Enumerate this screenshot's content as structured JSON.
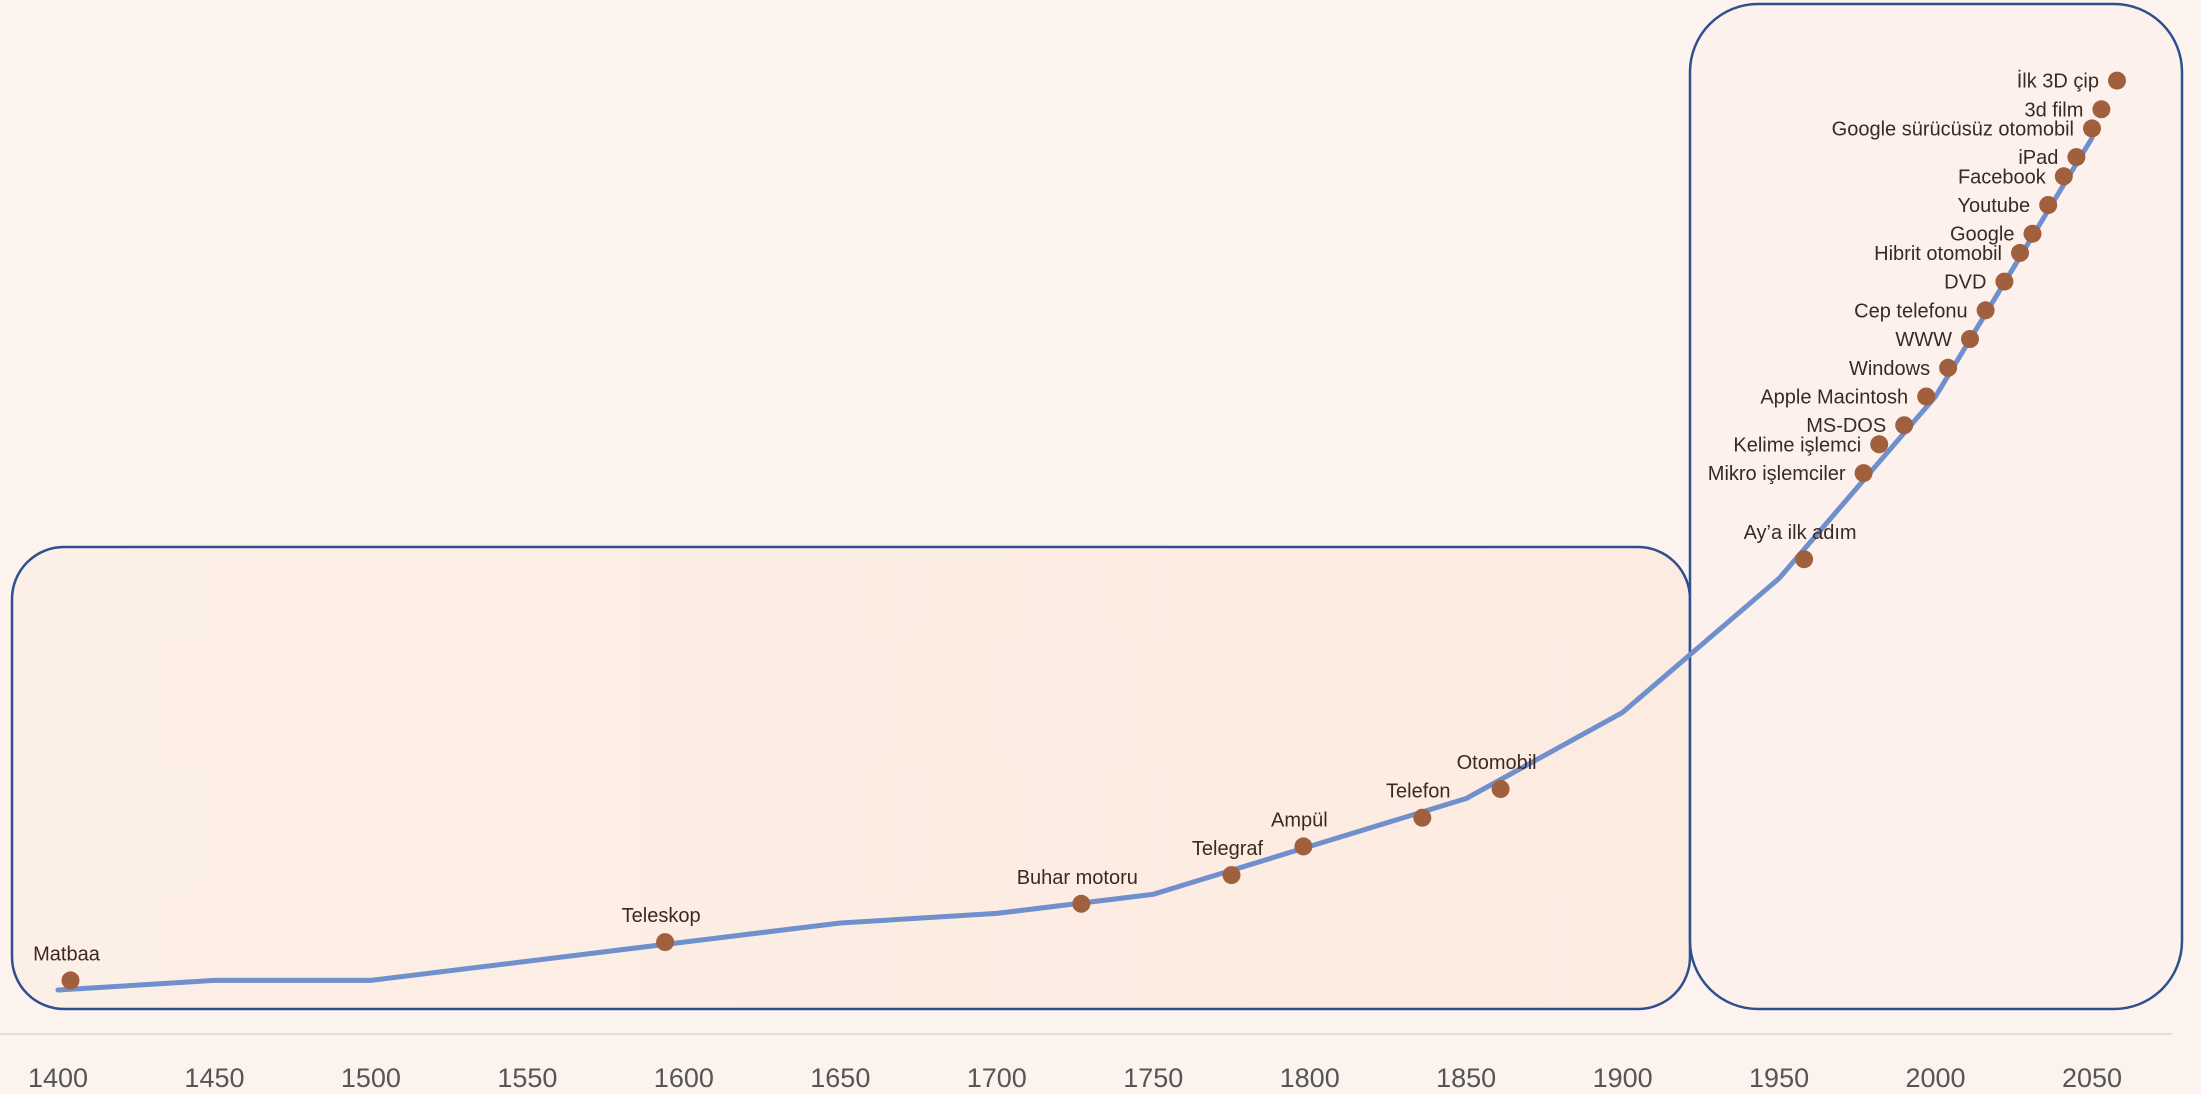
{
  "chart_data": {
    "type": "line",
    "title": "",
    "xlabel": "",
    "ylabel": "",
    "xlim": [
      1395,
      2075
    ],
    "x_ticks": [
      1400,
      1450,
      1500,
      1550,
      1600,
      1650,
      1700,
      1750,
      1800,
      1850,
      1900,
      1950,
      2000,
      2050
    ],
    "ylim": [
      0,
      100
    ],
    "grid": false,
    "legend": "none",
    "series": [
      {
        "x": [
          1400,
          1450,
          1500,
          1600,
          1650,
          1700,
          1750,
          1800,
          1850,
          1900,
          1950,
          2000,
          2050
        ],
        "y": [
          2,
          3,
          3,
          7,
          9,
          10,
          12,
          17,
          22,
          31,
          45,
          64,
          91
        ],
        "color": "#6f8fcd"
      }
    ],
    "events": [
      {
        "label": "Matbaa",
        "x": 1404,
        "y": 3
      },
      {
        "label": "Teleskop",
        "x": 1594,
        "y": 7
      },
      {
        "label": "Buhar motoru",
        "x": 1727,
        "y": 11
      },
      {
        "label": "Telegraf",
        "x": 1775,
        "y": 14
      },
      {
        "label": "Ampül",
        "x": 1798,
        "y": 17
      },
      {
        "label": "Telefon",
        "x": 1836,
        "y": 20
      },
      {
        "label": "Otomobil",
        "x": 1861,
        "y": 23
      },
      {
        "label": "Ay’a ilk adım",
        "x": 1958,
        "y": 47
      },
      {
        "label": "Mikro işlemciler",
        "x": 1977,
        "y": 56
      },
      {
        "label": "Kelime işlemci",
        "x": 1982,
        "y": 59
      },
      {
        "label": "MS-DOS",
        "x": 1990,
        "y": 61
      },
      {
        "label": "Apple Macintosh",
        "x": 1997,
        "y": 64
      },
      {
        "label": "Windows",
        "x": 2004,
        "y": 67
      },
      {
        "label": "WWW",
        "x": 2011,
        "y": 70
      },
      {
        "label": "Cep telefonu",
        "x": 2016,
        "y": 73
      },
      {
        "label": "DVD",
        "x": 2022,
        "y": 76
      },
      {
        "label": "Hibrit otomobil",
        "x": 2027,
        "y": 79
      },
      {
        "label": "Google",
        "x": 2031,
        "y": 81
      },
      {
        "label": "Youtube",
        "x": 2036,
        "y": 84
      },
      {
        "label": "Facebook",
        "x": 2041,
        "y": 87
      },
      {
        "label": "iPad",
        "x": 2045,
        "y": 89
      },
      {
        "label": "Google sürücüsüz otomobil",
        "x": 2050,
        "y": 92
      },
      {
        "label": "3d film",
        "x": 2053,
        "y": 94
      },
      {
        "label": "İlk 3D çip",
        "x": 2058,
        "y": 97
      }
    ],
    "marker_color": "#a0603e",
    "frame_color": "#2f4f8f"
  }
}
